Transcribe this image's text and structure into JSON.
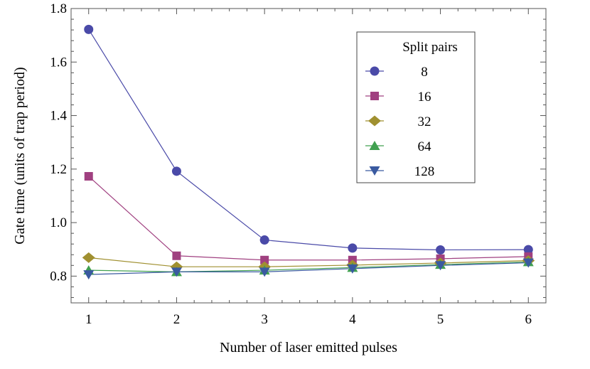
{
  "chart_data": {
    "type": "line",
    "xlabel": "Number of laser emitted pulses",
    "ylabel": "Gate time (units of trap period)",
    "xlim": [
      0.8,
      6.2
    ],
    "ylim": [
      0.7,
      1.8
    ],
    "xticks": [
      1,
      2,
      3,
      4,
      5,
      6
    ],
    "yticks": [
      0.8,
      1.0,
      1.2,
      1.4,
      1.6,
      1.8
    ],
    "ytick_labels": [
      "0.8",
      "1.0",
      "1.2",
      "1.4",
      "1.6",
      "1.8"
    ],
    "x": [
      1,
      2,
      3,
      4,
      5,
      6
    ],
    "grid": false,
    "legend": {
      "title": "Split pairs",
      "placement": "top-right"
    },
    "series": [
      {
        "name": "8",
        "marker": "circle",
        "color": "#4a4aa8",
        "values": [
          1.722,
          1.192,
          0.935,
          0.905,
          0.898,
          0.899
        ]
      },
      {
        "name": "16",
        "marker": "square",
        "color": "#a04080",
        "values": [
          1.173,
          0.876,
          0.86,
          0.86,
          0.865,
          0.873
        ]
      },
      {
        "name": "32",
        "marker": "diamond",
        "color": "#a09030",
        "values": [
          0.869,
          0.835,
          0.835,
          0.841,
          0.849,
          0.858
        ]
      },
      {
        "name": "64",
        "marker": "triangle-up",
        "color": "#40a050",
        "values": [
          0.822,
          0.816,
          0.822,
          0.832,
          0.843,
          0.853
        ]
      },
      {
        "name": "128",
        "marker": "triangle-down",
        "color": "#3a5aa0",
        "values": [
          0.806,
          0.816,
          0.816,
          0.828,
          0.84,
          0.85
        ]
      }
    ]
  }
}
